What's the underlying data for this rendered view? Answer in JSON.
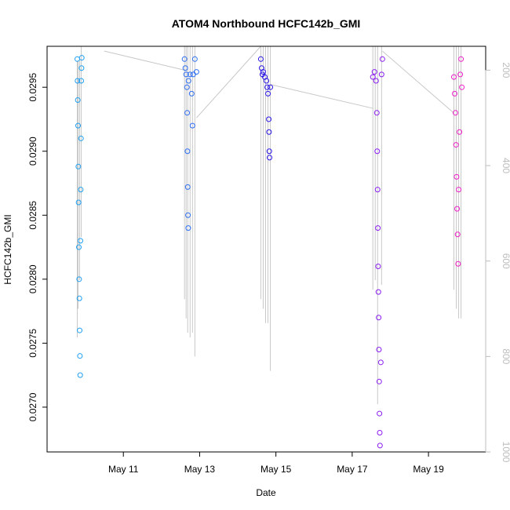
{
  "chart_data": {
    "type": "scatter",
    "title": "ATOM4 Northbound HCFC142b_GMI",
    "xlabel": "Date",
    "ylabel": "HCFC142b_GMI",
    "xlim": [
      "2018-05-09T00:00",
      "2018-05-20T12:00"
    ],
    "ylim": [
      0.02665,
      0.02982
    ],
    "x_ticks": [
      {
        "date": "2018-05-11",
        "label": "May 11"
      },
      {
        "date": "2018-05-13",
        "label": "May 13"
      },
      {
        "date": "2018-05-15",
        "label": "May 15"
      },
      {
        "date": "2018-05-17",
        "label": "May 17"
      },
      {
        "date": "2018-05-19",
        "label": "May 19"
      }
    ],
    "y_ticks": [
      "0.0270",
      "0.0275",
      "0.0280",
      "0.0285",
      "0.0290",
      "0.0295"
    ],
    "y2_ticks": [
      "200",
      "400",
      "600",
      "800",
      "1000"
    ],
    "y2_range": [
      1000,
      150
    ],
    "marker": "open-circle",
    "pressure_line_color": "#c8c8c8",
    "series": [
      {
        "color": "#1e9ff2",
        "points": [
          {
            "x": "2018-05-09T19:00",
            "y": 0.02972
          },
          {
            "x": "2018-05-09T19:10",
            "y": 0.02955
          },
          {
            "x": "2018-05-09T19:20",
            "y": 0.0294
          },
          {
            "x": "2018-05-09T19:30",
            "y": 0.0292
          },
          {
            "x": "2018-05-09T19:40",
            "y": 0.02888
          },
          {
            "x": "2018-05-09T19:50",
            "y": 0.0286
          },
          {
            "x": "2018-05-09T20:00",
            "y": 0.02825
          },
          {
            "x": "2018-05-09T20:10",
            "y": 0.028
          },
          {
            "x": "2018-05-09T20:20",
            "y": 0.02785
          },
          {
            "x": "2018-05-09T20:30",
            "y": 0.0276
          },
          {
            "x": "2018-05-09T20:40",
            "y": 0.0274
          },
          {
            "x": "2018-05-09T20:50",
            "y": 0.02725
          },
          {
            "x": "2018-05-09T21:00",
            "y": 0.0283
          },
          {
            "x": "2018-05-09T21:10",
            "y": 0.0287
          },
          {
            "x": "2018-05-09T21:20",
            "y": 0.0291
          },
          {
            "x": "2018-05-09T21:30",
            "y": 0.02955
          },
          {
            "x": "2018-05-09T21:40",
            "y": 0.02965
          },
          {
            "x": "2018-05-09T21:50",
            "y": 0.02973
          }
        ]
      },
      {
        "color": "#2f6ff2",
        "points": [
          {
            "x": "2018-05-12T14:30",
            "y": 0.02972
          },
          {
            "x": "2018-05-12T15:00",
            "y": 0.02965
          },
          {
            "x": "2018-05-12T15:30",
            "y": 0.0296
          },
          {
            "x": "2018-05-12T16:00",
            "y": 0.0295
          },
          {
            "x": "2018-05-12T16:10",
            "y": 0.0293
          },
          {
            "x": "2018-05-12T16:20",
            "y": 0.029
          },
          {
            "x": "2018-05-12T16:30",
            "y": 0.02872
          },
          {
            "x": "2018-05-12T16:40",
            "y": 0.0285
          },
          {
            "x": "2018-05-12T16:50",
            "y": 0.0284
          },
          {
            "x": "2018-05-12T17:00",
            "y": 0.02955
          },
          {
            "x": "2018-05-12T18:00",
            "y": 0.0296
          },
          {
            "x": "2018-05-12T19:00",
            "y": 0.02945
          },
          {
            "x": "2018-05-12T19:30",
            "y": 0.0292
          },
          {
            "x": "2018-05-12T20:00",
            "y": 0.0296
          },
          {
            "x": "2018-05-12T21:00",
            "y": 0.02972
          },
          {
            "x": "2018-05-12T22:00",
            "y": 0.02962
          }
        ]
      },
      {
        "color": "#2a16e6",
        "points": [
          {
            "x": "2018-05-14T14:30",
            "y": 0.02972
          },
          {
            "x": "2018-05-14T15:00",
            "y": 0.02965
          },
          {
            "x": "2018-05-14T15:30",
            "y": 0.0296
          },
          {
            "x": "2018-05-14T16:00",
            "y": 0.02962
          },
          {
            "x": "2018-05-14T17:00",
            "y": 0.02958
          },
          {
            "x": "2018-05-14T18:00",
            "y": 0.02955
          },
          {
            "x": "2018-05-14T18:30",
            "y": 0.0295
          },
          {
            "x": "2018-05-14T19:00",
            "y": 0.02945
          },
          {
            "x": "2018-05-14T19:30",
            "y": 0.02925
          },
          {
            "x": "2018-05-14T19:40",
            "y": 0.02915
          },
          {
            "x": "2018-05-14T19:50",
            "y": 0.029
          },
          {
            "x": "2018-05-14T20:00",
            "y": 0.02895
          },
          {
            "x": "2018-05-14T20:30",
            "y": 0.0295
          }
        ]
      },
      {
        "color": "#8a1ef0",
        "points": [
          {
            "x": "2018-05-17T13:00",
            "y": 0.02958
          },
          {
            "x": "2018-05-17T14:00",
            "y": 0.02962
          },
          {
            "x": "2018-05-17T15:00",
            "y": 0.02955
          },
          {
            "x": "2018-05-17T15:30",
            "y": 0.0293
          },
          {
            "x": "2018-05-17T15:45",
            "y": 0.029
          },
          {
            "x": "2018-05-17T16:00",
            "y": 0.0287
          },
          {
            "x": "2018-05-17T16:10",
            "y": 0.0284
          },
          {
            "x": "2018-05-17T16:20",
            "y": 0.0281
          },
          {
            "x": "2018-05-17T16:30",
            "y": 0.0279
          },
          {
            "x": "2018-05-17T16:40",
            "y": 0.0277
          },
          {
            "x": "2018-05-17T16:50",
            "y": 0.02745
          },
          {
            "x": "2018-05-17T17:00",
            "y": 0.0272
          },
          {
            "x": "2018-05-17T17:10",
            "y": 0.02695
          },
          {
            "x": "2018-05-17T17:20",
            "y": 0.0268
          },
          {
            "x": "2018-05-17T17:30",
            "y": 0.0267
          },
          {
            "x": "2018-05-17T18:00",
            "y": 0.02735
          },
          {
            "x": "2018-05-17T18:30",
            "y": 0.0296
          },
          {
            "x": "2018-05-17T19:00",
            "y": 0.02972
          }
        ]
      },
      {
        "color": "#ee1ec8",
        "points": [
          {
            "x": "2018-05-19T16:00",
            "y": 0.02958
          },
          {
            "x": "2018-05-19T16:30",
            "y": 0.02945
          },
          {
            "x": "2018-05-19T17:00",
            "y": 0.0293
          },
          {
            "x": "2018-05-19T17:20",
            "y": 0.02905
          },
          {
            "x": "2018-05-19T17:40",
            "y": 0.0288
          },
          {
            "x": "2018-05-19T18:00",
            "y": 0.02855
          },
          {
            "x": "2018-05-19T18:20",
            "y": 0.02835
          },
          {
            "x": "2018-05-19T18:40",
            "y": 0.02812
          },
          {
            "x": "2018-05-19T19:00",
            "y": 0.0287
          },
          {
            "x": "2018-05-19T19:30",
            "y": 0.02915
          },
          {
            "x": "2018-05-19T20:00",
            "y": 0.0296
          },
          {
            "x": "2018-05-19T20:30",
            "y": 0.02972
          },
          {
            "x": "2018-05-19T21:00",
            "y": 0.0295
          }
        ]
      }
    ],
    "pressure_profiles": [
      {
        "x": "2018-05-09T19:00",
        "p": [
          180,
          760
        ]
      },
      {
        "x": "2018-05-09T19:30",
        "p": [
          180,
          700
        ]
      },
      {
        "x": "2018-05-09T20:30",
        "p": [
          180,
          640
        ]
      },
      {
        "x": "2018-05-09T21:30",
        "p": [
          150,
          550
        ]
      },
      {
        "x": "2018-05-12T14:30",
        "p": [
          150,
          680
        ]
      },
      {
        "x": "2018-05-12T15:30",
        "p": [
          150,
          720
        ]
      },
      {
        "x": "2018-05-12T16:30",
        "p": [
          150,
          750
        ]
      },
      {
        "x": "2018-05-12T18:00",
        "p": [
          150,
          760
        ]
      },
      {
        "x": "2018-05-12T19:30",
        "p": [
          150,
          750
        ]
      },
      {
        "x": "2018-05-12T21:00",
        "p": [
          150,
          800
        ]
      },
      {
        "x": "2018-05-14T14:30",
        "p": [
          150,
          680
        ]
      },
      {
        "x": "2018-05-14T16:00",
        "p": [
          150,
          700
        ]
      },
      {
        "x": "2018-05-14T17:30",
        "p": [
          150,
          730
        ]
      },
      {
        "x": "2018-05-14T19:00",
        "p": [
          150,
          730
        ]
      },
      {
        "x": "2018-05-14T20:30",
        "p": [
          150,
          830
        ]
      },
      {
        "x": "2018-05-17T13:00",
        "p": [
          150,
          660
        ]
      },
      {
        "x": "2018-05-17T14:30",
        "p": [
          150,
          640
        ]
      },
      {
        "x": "2018-05-17T16:00",
        "p": [
          150,
          900
        ]
      },
      {
        "x": "2018-05-17T18:30",
        "p": [
          150,
          650
        ]
      },
      {
        "x": "2018-05-19T16:00",
        "p": [
          150,
          660
        ]
      },
      {
        "x": "2018-05-19T17:30",
        "p": [
          150,
          700
        ]
      },
      {
        "x": "2018-05-19T19:00",
        "p": [
          150,
          720
        ]
      },
      {
        "x": "2018-05-19T20:30",
        "p": [
          150,
          720
        ]
      }
    ],
    "pressure_transits": [
      {
        "from": {
          "x": "2018-05-10T12:00",
          "p": 160
        },
        "to": {
          "x": "2018-05-12T14:30",
          "p": 200
        }
      },
      {
        "from": {
          "x": "2018-05-12T22:00",
          "p": 300
        },
        "to": {
          "x": "2018-05-14T14:30",
          "p": 150
        }
      },
      {
        "from": {
          "x": "2018-05-14T20:30",
          "p": 230
        },
        "to": {
          "x": "2018-05-17T13:00",
          "p": 280
        }
      },
      {
        "from": {
          "x": "2018-05-17T19:00",
          "p": 160
        },
        "to": {
          "x": "2018-05-19T16:00",
          "p": 290
        }
      }
    ]
  }
}
